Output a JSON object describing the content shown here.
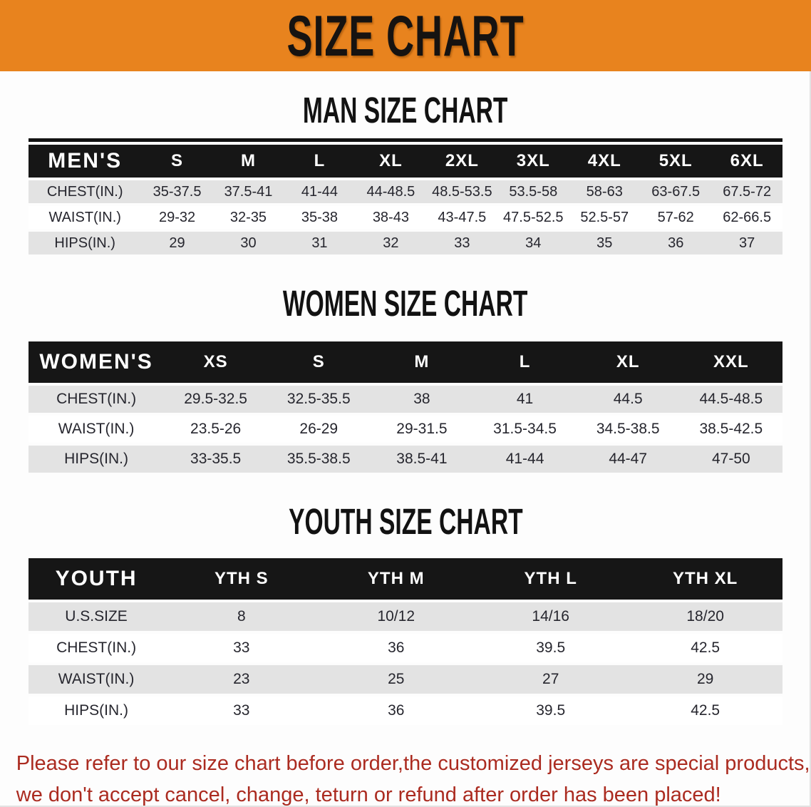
{
  "banner": {
    "title": "SIZE CHART",
    "bg_color": "#e8831e",
    "text_color": "#161311"
  },
  "sections": [
    {
      "heading": "MAN SIZE CHART",
      "table": {
        "label": "MEN'S",
        "columns": [
          "S",
          "M",
          "L",
          "XL",
          "2XL",
          "3XL",
          "4XL",
          "5XL",
          "6XL"
        ],
        "rows": [
          {
            "label": "CHEST(IN.)",
            "values": [
              "35-37.5",
              "37.5-41",
              "41-44",
              "44-48.5",
              "48.5-53.5",
              "53.5-58",
              "58-63",
              "63-67.5",
              "67.5-72"
            ]
          },
          {
            "label": "WAIST(IN.)",
            "values": [
              "29-32",
              "32-35",
              "35-38",
              "38-43",
              "43-47.5",
              "47.5-52.5",
              "52.5-57",
              "57-62",
              "62-66.5"
            ]
          },
          {
            "label": "HIPS(IN.)",
            "values": [
              "29",
              "30",
              "31",
              "32",
              "33",
              "34",
              "35",
              "36",
              "37"
            ]
          }
        ]
      }
    },
    {
      "heading": "WOMEN SIZE CHART",
      "table": {
        "label": "WOMEN'S",
        "columns": [
          "XS",
          "S",
          "M",
          "L",
          "XL",
          "XXL"
        ],
        "rows": [
          {
            "label": "CHEST(IN.)",
            "values": [
              "29.5-32.5",
              "32.5-35.5",
              "38",
              "41",
              "44.5",
              "44.5-48.5"
            ]
          },
          {
            "label": "WAIST(IN.)",
            "values": [
              "23.5-26",
              "26-29",
              "29-31.5",
              "31.5-34.5",
              "34.5-38.5",
              "38.5-42.5"
            ]
          },
          {
            "label": "HIPS(IN.)",
            "values": [
              "33-35.5",
              "35.5-38.5",
              "38.5-41",
              "41-44",
              "44-47",
              "47-50"
            ]
          }
        ]
      }
    },
    {
      "heading": "YOUTH SIZE CHART",
      "table": {
        "label": "YOUTH",
        "columns": [
          "YTH S",
          "YTH M",
          "YTH L",
          "YTH XL"
        ],
        "rows": [
          {
            "label": "U.S.SIZE",
            "values": [
              "8",
              "10/12",
              "14/16",
              "18/20"
            ]
          },
          {
            "label": "CHEST(IN.)",
            "values": [
              "33",
              "36",
              "39.5",
              "42.5"
            ]
          },
          {
            "label": "WAIST(IN.)",
            "values": [
              "23",
              "25",
              "27",
              "29"
            ]
          },
          {
            "label": "HIPS(IN.)",
            "values": [
              "33",
              "36",
              "39.5",
              "42.5"
            ]
          }
        ]
      }
    }
  ],
  "footer": {
    "line1": "Please refer to our size chart before order,the customized jerseys are special products,",
    "line2": "we don't accept cancel, change, teturn or refund after order has been placed!",
    "color": "#ab2b20"
  },
  "colors": {
    "header_bar": "#161616",
    "row_stripe": "#e3e3e3",
    "data_text": "#26262e"
  }
}
